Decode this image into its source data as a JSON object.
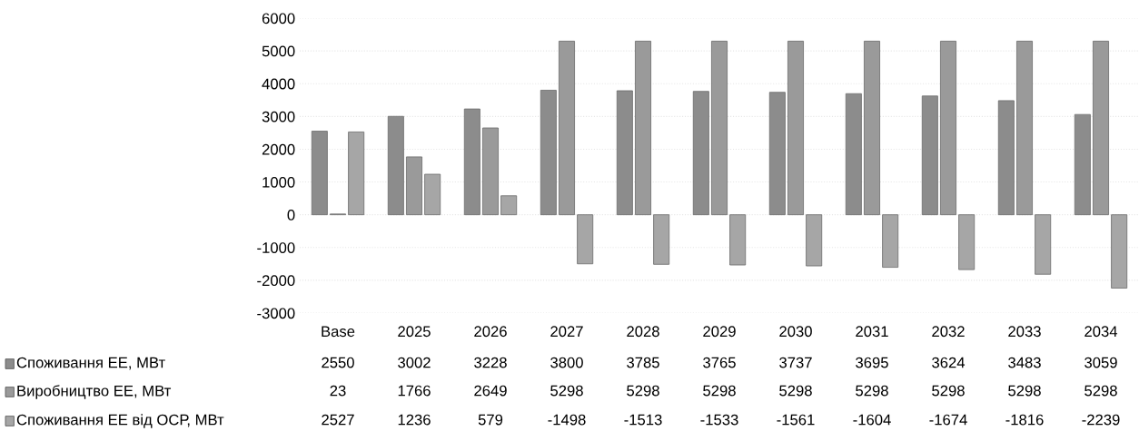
{
  "chart_data": {
    "type": "bar",
    "categories": [
      "Base",
      "2025",
      "2026",
      "2027",
      "2028",
      "2029",
      "2030",
      "2031",
      "2032",
      "2033",
      "2034"
    ],
    "series": [
      {
        "name": "Споживання ЕЕ, МВт",
        "color": "#8c8c8c",
        "values": [
          2550,
          3002,
          3228,
          3800,
          3785,
          3765,
          3737,
          3695,
          3624,
          3483,
          3059
        ]
      },
      {
        "name": "Виробництво ЕЕ, МВт",
        "color": "#9a9a9a",
        "values": [
          23,
          1766,
          2649,
          5298,
          5298,
          5298,
          5298,
          5298,
          5298,
          5298,
          5298
        ]
      },
      {
        "name": "Споживання ЕЕ від ОСР, МВт",
        "color": "#a6a6a6",
        "values": [
          2527,
          1236,
          579,
          -1498,
          -1513,
          -1533,
          -1561,
          -1604,
          -1674,
          -1816,
          -2239
        ]
      }
    ],
    "ylim": [
      -3000,
      6000
    ],
    "yticks": [
      -3000,
      -2000,
      -1000,
      0,
      1000,
      2000,
      3000,
      4000,
      5000,
      6000
    ],
    "grid": "y",
    "data_labels": true,
    "legend": "bottom left"
  }
}
